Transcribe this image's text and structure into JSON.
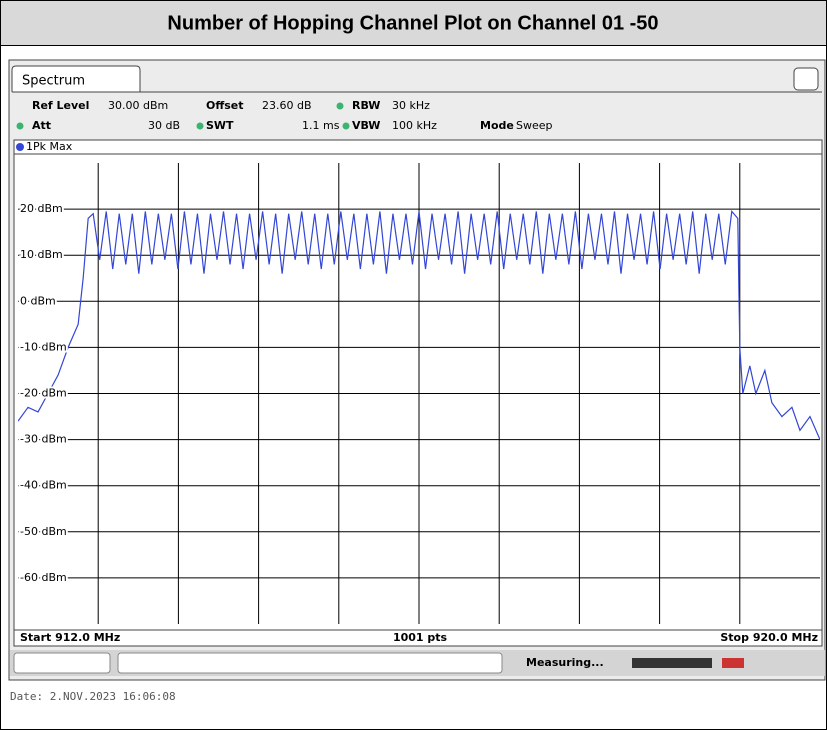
{
  "header": {
    "title": "Number of Hopping Channel Plot on Channel 01 -50"
  },
  "instrument": {
    "tab": "Spectrum",
    "settings": [
      [
        "Ref Level",
        "30.00 dBm"
      ],
      [
        "Offset",
        "23.60 dB"
      ],
      [
        "RBW",
        "30 kHz"
      ],
      [
        "Att",
        "30 dB"
      ],
      [
        "SWT",
        "1.1 ms"
      ],
      [
        "VBW",
        "100 kHz"
      ],
      [
        "Mode",
        "Sweep"
      ]
    ],
    "trace_label": "1Pk Max",
    "start": "Start 912.0 MHz",
    "points": "1001 pts",
    "stop": "Stop 920.0 MHz",
    "status": "Measuring...",
    "date": "Date: 2.NOV.2023  16:06:08"
  },
  "chart_data": {
    "type": "line",
    "x": [
      912.0,
      912.1,
      912.2,
      912.3,
      912.4,
      912.5,
      912.6,
      912.65,
      912.7,
      912.75,
      912.815,
      912.88,
      912.945,
      913.01,
      913.075,
      913.14,
      913.205,
      913.27,
      913.335,
      913.4,
      913.465,
      913.53,
      913.595,
      913.66,
      913.725,
      913.79,
      913.855,
      913.92,
      913.985,
      914.05,
      914.115,
      914.18,
      914.245,
      914.31,
      914.375,
      914.44,
      914.505,
      914.57,
      914.635,
      914.7,
      914.765,
      914.83,
      914.895,
      914.96,
      915.025,
      915.09,
      915.155,
      915.22,
      915.285,
      915.35,
      915.415,
      915.48,
      915.545,
      915.61,
      915.675,
      915.74,
      915.805,
      915.87,
      915.935,
      916.0,
      916.065,
      916.13,
      916.195,
      916.26,
      916.325,
      916.39,
      916.455,
      916.52,
      916.585,
      916.65,
      916.715,
      916.78,
      916.845,
      916.91,
      916.975,
      917.04,
      917.105,
      917.17,
      917.235,
      917.3,
      917.365,
      917.43,
      917.495,
      917.56,
      917.625,
      917.69,
      917.755,
      917.82,
      917.885,
      917.95,
      918.015,
      918.08,
      918.145,
      918.21,
      918.275,
      918.34,
      918.405,
      918.47,
      918.535,
      918.6,
      918.665,
      918.73,
      918.795,
      918.86,
      918.925,
      918.99,
      919.055,
      919.12,
      919.18,
      919.2,
      919.23,
      919.3,
      919.36,
      919.45,
      919.52,
      919.62,
      919.72,
      919.8,
      919.9,
      920.0
    ],
    "series": [
      {
        "name": "1Pk Max",
        "color": "#3346d6",
        "values": [
          -26,
          -23,
          -24,
          -20,
          -16,
          -10,
          -5,
          5,
          18,
          19,
          9,
          19.5,
          7,
          19,
          8,
          19,
          6,
          19.5,
          8,
          19,
          9,
          19,
          7,
          19.5,
          8,
          19,
          6,
          19,
          9,
          19.5,
          8,
          19,
          7,
          19,
          9,
          19.5,
          8,
          19,
          6,
          19,
          9,
          19.5,
          8,
          19,
          7,
          19,
          8,
          19.5,
          9,
          19,
          7,
          19,
          8,
          19.5,
          6,
          19,
          9,
          19,
          8,
          19.5,
          7,
          19,
          9,
          19,
          8,
          19.5,
          6,
          19,
          9,
          19,
          8,
          19.5,
          7,
          19,
          9,
          19,
          8,
          19.5,
          6,
          19,
          9,
          19,
          8,
          19.5,
          7,
          19,
          9,
          19,
          8,
          19.5,
          6,
          19,
          9,
          19,
          8,
          19.5,
          7,
          19,
          9,
          19,
          8,
          19.5,
          6,
          19,
          9,
          19,
          8,
          19.5,
          18,
          -10,
          -20,
          -14,
          -20,
          -15,
          -22,
          -25,
          -23,
          -28,
          -25,
          -30
        ]
      }
    ],
    "xlim": [
      912.0,
      920.0
    ],
    "xticks": [
      912.8,
      913.6,
      914.4,
      915.2,
      916.0,
      916.8,
      917.6,
      918.4,
      919.2
    ],
    "ylim": [
      -70,
      30
    ],
    "yticks": [
      {
        "value": 20,
        "label": "20 dBm"
      },
      {
        "value": 10,
        "label": "10 dBm"
      },
      {
        "value": 0,
        "label": "0 dBm"
      },
      {
        "value": -10,
        "label": "-10 dBm"
      },
      {
        "value": -20,
        "label": "-20 dBm"
      },
      {
        "value": -30,
        "label": "-30 dBm"
      },
      {
        "value": -40,
        "label": "-40 dBm"
      },
      {
        "value": -50,
        "label": "-50 dBm"
      },
      {
        "value": -60,
        "label": "-60 dBm"
      }
    ],
    "grid": true
  }
}
